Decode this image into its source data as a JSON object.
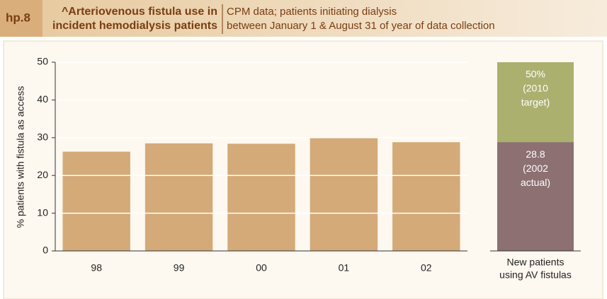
{
  "header": {
    "code": "hp.8",
    "title_lines": [
      "^Arteriovenous fistula use in",
      "incident hemodialysis patients"
    ],
    "subtitle_lines": [
      "CPM data; patients initiating dialysis",
      "between January 1 & August 31 of year of data collection"
    ]
  },
  "chart_data": {
    "type": "bar",
    "ylabel": "% patients with fistula as access",
    "categories": [
      "98",
      "99",
      "00",
      "01",
      "02"
    ],
    "values": [
      26.3,
      28.5,
      28.4,
      30.1,
      28.8
    ],
    "color": "#d4aa78",
    "ylim": [
      0,
      50
    ],
    "yticks": [
      0,
      10,
      20,
      30,
      40,
      50
    ],
    "grid": true,
    "grid_color": "#ffffff",
    "side": {
      "category_lines": [
        "New patients",
        "using AV fistulas"
      ],
      "target": 50,
      "target_label": "50%",
      "target_note": [
        "(2010",
        "target)"
      ],
      "target_color": "#abb06f",
      "actual": 28.8,
      "actual_note": [
        "(2002",
        "actual)"
      ],
      "actual_color": "#8c7072"
    }
  }
}
